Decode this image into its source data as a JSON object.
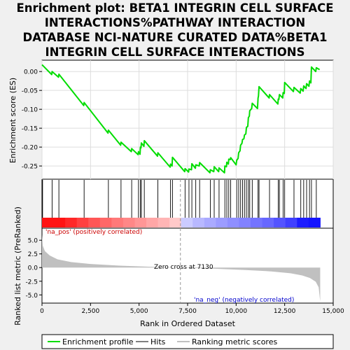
{
  "title_lines": [
    "Enrichment plot: BETA1 INTEGRIN CELL SURFACE",
    "INTERACTIONS%PATHWAY INTERACTION",
    "DATABASE NCI-NATURE CURATED DATA%BETA1",
    "INTEGRIN CELL SURFACE INTERACTIONS"
  ],
  "colors": {
    "enrichment_line": "#00dd00",
    "hits": "#000000",
    "metric_fill": "#c0c0c0",
    "pos_label": "#cc0000",
    "neg_label": "#0000cc"
  },
  "chart_data": {
    "type": "line",
    "x_label": "Rank in Ordered Dataset",
    "x_range": [
      0,
      15000
    ],
    "x_ticks": [
      "0",
      "2,500",
      "5,000",
      "7,500",
      "10,000",
      "12,500",
      "15,000"
    ],
    "x_tick_values": [
      0,
      2500,
      5000,
      7500,
      10000,
      12500,
      15000
    ],
    "enrichment": {
      "ylabel": "Enrichment score (ES)",
      "ylim": [
        -0.285,
        0.03
      ],
      "y_ticks": [
        "0.00",
        "-0.05",
        "-0.10",
        "-0.15",
        "-0.20",
        "-0.25"
      ],
      "y_tick_values": [
        0.0,
        -0.05,
        -0.1,
        -0.15,
        -0.2,
        -0.25
      ],
      "grid": true,
      "points": [
        [
          0,
          0.018
        ],
        [
          500,
          -0.008
        ],
        [
          520,
          0.0
        ],
        [
          850,
          -0.015
        ],
        [
          870,
          -0.007
        ],
        [
          2150,
          -0.09
        ],
        [
          2170,
          -0.082
        ],
        [
          3400,
          -0.163
        ],
        [
          3420,
          -0.155
        ],
        [
          4050,
          -0.195
        ],
        [
          4070,
          -0.187
        ],
        [
          4600,
          -0.212
        ],
        [
          4620,
          -0.204
        ],
        [
          4950,
          -0.22
        ],
        [
          4970,
          -0.212
        ],
        [
          5050,
          -0.219
        ],
        [
          5070,
          -0.2
        ],
        [
          5100,
          -0.202
        ],
        [
          5120,
          -0.189
        ],
        [
          5250,
          -0.198
        ],
        [
          5270,
          -0.183
        ],
        [
          5950,
          -0.224
        ],
        [
          5970,
          -0.215
        ],
        [
          6600,
          -0.253
        ],
        [
          6620,
          -0.245
        ],
        [
          6700,
          -0.25
        ],
        [
          6720,
          -0.227
        ],
        [
          7350,
          -0.265
        ],
        [
          7370,
          -0.257
        ],
        [
          7550,
          -0.266
        ],
        [
          7570,
          -0.258
        ],
        [
          7700,
          -0.26
        ],
        [
          7720,
          -0.244
        ],
        [
          7900,
          -0.256
        ],
        [
          7920,
          -0.247
        ],
        [
          8100,
          -0.25
        ],
        [
          8120,
          -0.241
        ],
        [
          8650,
          -0.268
        ],
        [
          8670,
          -0.26
        ],
        [
          8850,
          -0.265
        ],
        [
          8870,
          -0.252
        ],
        [
          9100,
          -0.265
        ],
        [
          9120,
          -0.255
        ],
        [
          9400,
          -0.268
        ],
        [
          9420,
          -0.25
        ],
        [
          9500,
          -0.252
        ],
        [
          9520,
          -0.24
        ],
        [
          9600,
          -0.245
        ],
        [
          9620,
          -0.232
        ],
        [
          9700,
          -0.233
        ],
        [
          9720,
          -0.228
        ],
        [
          10000,
          -0.247
        ],
        [
          10030,
          -0.235
        ],
        [
          10100,
          -0.23
        ],
        [
          10130,
          -0.215
        ],
        [
          10200,
          -0.21
        ],
        [
          10230,
          -0.195
        ],
        [
          10300,
          -0.19
        ],
        [
          10330,
          -0.18
        ],
        [
          10400,
          -0.178
        ],
        [
          10430,
          -0.168
        ],
        [
          10500,
          -0.165
        ],
        [
          10530,
          -0.148
        ],
        [
          10600,
          -0.145
        ],
        [
          10630,
          -0.122
        ],
        [
          10680,
          -0.118
        ],
        [
          10700,
          -0.104
        ],
        [
          10800,
          -0.098
        ],
        [
          10830,
          -0.084
        ],
        [
          11100,
          -0.098
        ],
        [
          11130,
          -0.07
        ],
        [
          11150,
          -0.065
        ],
        [
          11180,
          -0.04
        ],
        [
          11700,
          -0.07
        ],
        [
          11720,
          -0.061
        ],
        [
          12150,
          -0.086
        ],
        [
          12170,
          -0.073
        ],
        [
          12200,
          -0.074
        ],
        [
          12230,
          -0.061
        ],
        [
          12400,
          -0.07
        ],
        [
          12420,
          -0.056
        ],
        [
          12480,
          -0.058
        ],
        [
          12500,
          -0.029
        ],
        [
          12950,
          -0.053
        ],
        [
          12980,
          -0.042
        ],
        [
          13300,
          -0.057
        ],
        [
          13330,
          -0.045
        ],
        [
          13450,
          -0.052
        ],
        [
          13480,
          -0.038
        ],
        [
          13600,
          -0.045
        ],
        [
          13630,
          -0.032
        ],
        [
          13750,
          -0.039
        ],
        [
          13780,
          -0.025
        ],
        [
          13850,
          -0.03
        ],
        [
          13880,
          0.012
        ],
        [
          14100,
          0.0
        ],
        [
          14130,
          0.01
        ],
        [
          14300,
          0.005
        ]
      ]
    },
    "hits": [
      30,
      520,
      870,
      2170,
      3420,
      4070,
      4620,
      4970,
      5070,
      5120,
      5270,
      5970,
      6620,
      6720,
      7370,
      7570,
      7720,
      7920,
      8120,
      8670,
      8870,
      9120,
      9420,
      9520,
      9620,
      9720,
      10030,
      10130,
      10230,
      10330,
      10430,
      10530,
      10630,
      10700,
      10830,
      11130,
      11180,
      11720,
      12170,
      12230,
      12420,
      12500,
      12980,
      13330,
      13480,
      13630,
      13780,
      13880,
      14130
    ],
    "ranked_metric": {
      "ylabel": "Ranked list metric (PreRanked)",
      "ylim": [
        -6.5,
        7.2
      ],
      "y_ticks": [
        "5.0",
        "2.5",
        "0.0",
        "-2.5",
        "-5.0"
      ],
      "y_tick_values": [
        5.0,
        2.5,
        0.0,
        -2.5,
        -5.0
      ],
      "points": [
        [
          0,
          6.0
        ],
        [
          40,
          4.0
        ],
        [
          150,
          3.0
        ],
        [
          400,
          2.2
        ],
        [
          800,
          1.5
        ],
        [
          1500,
          1.0
        ],
        [
          2500,
          0.65
        ],
        [
          4000,
          0.35
        ],
        [
          5500,
          0.15
        ],
        [
          7130,
          0.0
        ],
        [
          9000,
          -0.22
        ],
        [
          10500,
          -0.45
        ],
        [
          11800,
          -0.7
        ],
        [
          12800,
          -1.05
        ],
        [
          13400,
          -1.45
        ],
        [
          13800,
          -1.9
        ],
        [
          14100,
          -2.6
        ],
        [
          14250,
          -3.6
        ],
        [
          14330,
          -6.2
        ]
      ],
      "zero_cross_label": "Zero cross at 7130",
      "zero_cross": 7130,
      "pos_label": "'na_pos' (positively correlated)",
      "neg_label": "'na_neg' (negatively correlated)"
    },
    "legend": {
      "position": "bottom",
      "items": [
        "Enrichment profile",
        "Hits",
        "Ranking metric scores"
      ]
    }
  }
}
